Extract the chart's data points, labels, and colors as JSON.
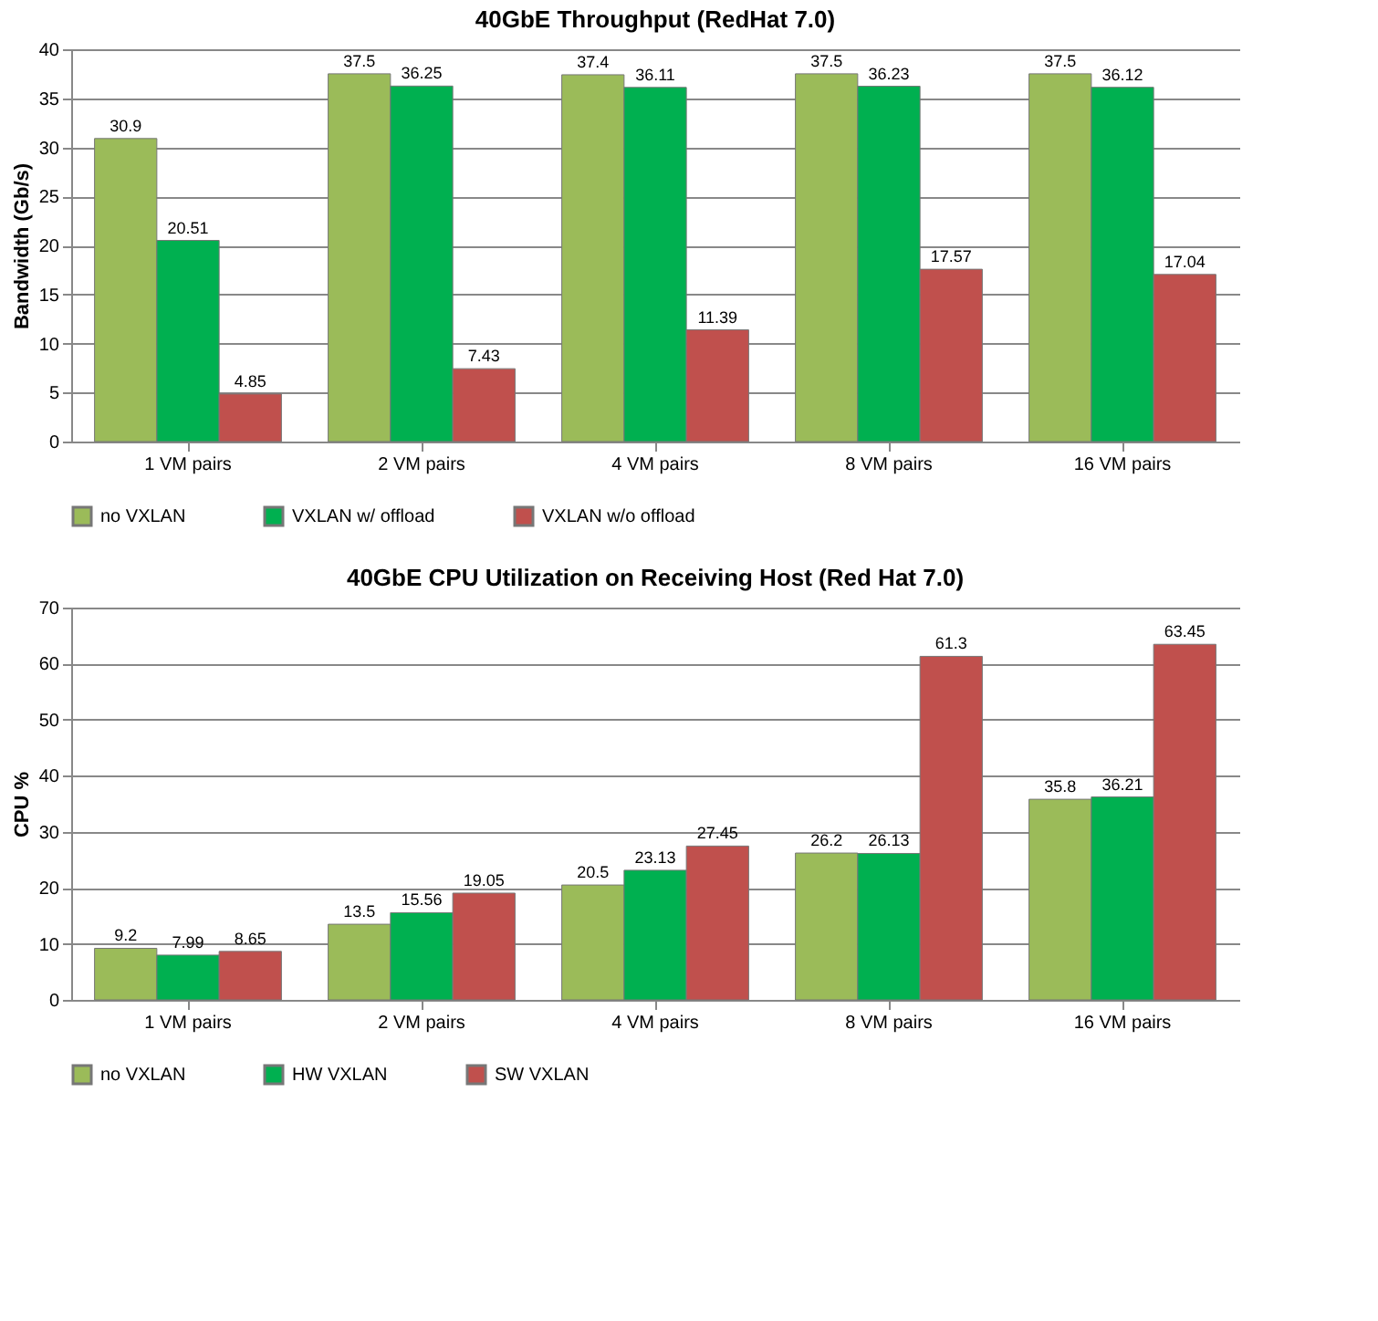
{
  "chart_data": [
    {
      "type": "bar",
      "title": "40GbE Throughput (RedHat 7.0)",
      "ylabel": "Bandwidth (Gb/s)",
      "categories": [
        "1 VM pairs",
        "2 VM pairs",
        "4 VM pairs",
        "8 VM pairs",
        "16 VM pairs"
      ],
      "series": [
        {
          "name": "no VXLAN",
          "color": "#9bbb59",
          "values": [
            30.9,
            37.5,
            37.4,
            37.5,
            37.5
          ]
        },
        {
          "name": "VXLAN w/ offload",
          "color": "#00b050",
          "values": [
            20.51,
            36.25,
            36.11,
            36.23,
            36.12
          ]
        },
        {
          "name": "VXLAN w/o offload",
          "color": "#c0504d",
          "values": [
            4.85,
            7.43,
            11.39,
            17.57,
            17.04
          ]
        }
      ],
      "ylim": [
        0,
        40
      ],
      "yticks": [
        0,
        5,
        10,
        15,
        20,
        25,
        30,
        35,
        40
      ],
      "grid": "y",
      "legend": "bottom",
      "data_labels": true
    },
    {
      "type": "bar",
      "title": "40GbE CPU Utilization on Receiving Host (Red Hat 7.0)",
      "ylabel": "CPU %",
      "categories": [
        "1 VM pairs",
        "2 VM pairs",
        "4 VM pairs",
        "8 VM pairs",
        "16 VM pairs"
      ],
      "series": [
        {
          "name": "no VXLAN",
          "color": "#9bbb59",
          "values": [
            9.2,
            13.5,
            20.5,
            26.2,
            35.8
          ]
        },
        {
          "name": "HW VXLAN",
          "color": "#00b050",
          "values": [
            7.99,
            15.56,
            23.13,
            26.13,
            36.21
          ]
        },
        {
          "name": "SW VXLAN",
          "color": "#c0504d",
          "values": [
            8.65,
            19.05,
            27.45,
            61.3,
            63.45
          ]
        }
      ],
      "ylim": [
        0,
        70
      ],
      "yticks": [
        0,
        10,
        20,
        30,
        40,
        50,
        60,
        70
      ],
      "grid": "y",
      "legend": "bottom",
      "data_labels": true
    }
  ]
}
